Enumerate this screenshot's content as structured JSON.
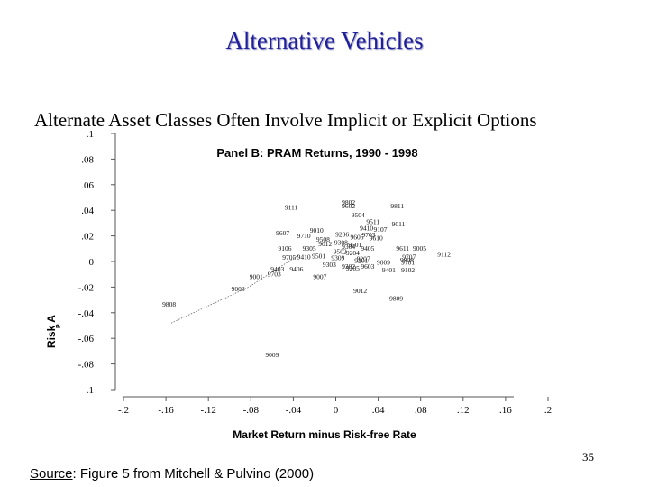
{
  "slide": {
    "title": "Alternative Vehicles",
    "subtitle": "Alternate Asset Classes Often Involve Implicit or Explicit Options",
    "slide_number": "35",
    "source_label": "Source",
    "source_text": ": Figure 5 from Mitchell & Pulvino (2000)"
  },
  "chart_data": {
    "type": "scatter",
    "title": "Panel B: PRAM Returns, 1990 - 1998",
    "xlabel": "Market Return minus Risk-free Rate",
    "ylabel": "Risk A",
    "ylabel_subscript": "P",
    "xlim": [
      -0.2,
      0.2
    ],
    "ylim": [
      -0.1,
      0.1
    ],
    "x_ticks": [
      {
        "value": -0.2,
        "label": "-.2"
      },
      {
        "value": -0.16,
        "label": "-.16"
      },
      {
        "value": -0.12,
        "label": "-.12"
      },
      {
        "value": -0.08,
        "label": "-.08"
      },
      {
        "value": -0.04,
        "label": "-.04"
      },
      {
        "value": 0,
        "label": "0"
      },
      {
        "value": 0.04,
        "label": ".04"
      },
      {
        "value": 0.08,
        "label": ".08"
      },
      {
        "value": 0.12,
        "label": ".12"
      },
      {
        "value": 0.16,
        "label": ".16"
      },
      {
        "value": 0.2,
        "label": ".2"
      }
    ],
    "y_ticks": [
      {
        "value": 0.1,
        "label": ".1"
      },
      {
        "value": 0.08,
        "label": ".08"
      },
      {
        "value": 0.06,
        "label": ".06"
      },
      {
        "value": 0.04,
        "label": ".04"
      },
      {
        "value": 0.02,
        "label": ".02"
      },
      {
        "value": 0,
        "label": "0"
      },
      {
        "value": -0.02,
        "label": "-.02"
      },
      {
        "value": -0.04,
        "label": "-.04"
      },
      {
        "value": -0.06,
        "label": "-.06"
      },
      {
        "value": -0.08,
        "label": "-.08"
      },
      {
        "value": -0.1,
        "label": "-.1"
      }
    ],
    "fit_line": [
      {
        "x": -0.155,
        "y": -0.048
      },
      {
        "x": -0.082,
        "y": -0.02
      },
      {
        "x": -0.035,
        "y": 0.005
      }
    ],
    "points": [
      {
        "label": "9808",
        "x": -0.157,
        "y": -0.033
      },
      {
        "label": "9008",
        "x": -0.092,
        "y": -0.021
      },
      {
        "label": "9001",
        "x": -0.075,
        "y": -0.0115
      },
      {
        "label": "9703",
        "x": -0.058,
        "y": -0.0095
      },
      {
        "label": "9403",
        "x": -0.055,
        "y": -0.0055
      },
      {
        "label": "9406",
        "x": -0.037,
        "y": -0.0055
      },
      {
        "label": "9007",
        "x": -0.015,
        "y": -0.0115
      },
      {
        "label": "9012",
        "x": 0.023,
        "y": -0.0225
      },
      {
        "label": "9809",
        "x": 0.057,
        "y": -0.0285
      },
      {
        "label": "9009",
        "x": -0.06,
        "y": -0.0725
      },
      {
        "label": "9802",
        "x": 0.012,
        "y": 0.0465
      },
      {
        "label": "9602",
        "x": 0.012,
        "y": 0.0435
      },
      {
        "label": "9111",
        "x": -0.042,
        "y": 0.0425
      },
      {
        "label": "9811",
        "x": 0.058,
        "y": 0.0435
      },
      {
        "label": "9504",
        "x": 0.021,
        "y": 0.0365
      },
      {
        "label": "9511",
        "x": 0.035,
        "y": 0.0315
      },
      {
        "label": "9011",
        "x": 0.059,
        "y": 0.0295
      },
      {
        "label": "9410",
        "x": 0.029,
        "y": 0.0265
      },
      {
        "label": "9107",
        "x": 0.042,
        "y": 0.0255
      },
      {
        "label": "9010",
        "x": -0.018,
        "y": 0.0245
      },
      {
        "label": "9607",
        "x": -0.05,
        "y": 0.0225
      },
      {
        "label": "9710",
        "x": -0.03,
        "y": 0.0205
      },
      {
        "label": "9106",
        "x": -0.048,
        "y": 0.0105
      },
      {
        "label": "9305",
        "x": -0.025,
        "y": 0.0105
      },
      {
        "label": "9012",
        "x": -0.01,
        "y": 0.014
      },
      {
        "label": "9308",
        "x": 0.005,
        "y": 0.015
      },
      {
        "label": "9705",
        "x": -0.044,
        "y": 0.0035
      },
      {
        "label": "9410",
        "x": -0.03,
        "y": 0.004
      },
      {
        "label": "9501",
        "x": -0.016,
        "y": 0.0045
      },
      {
        "label": "9309",
        "x": 0.002,
        "y": 0.003
      },
      {
        "label": "9204",
        "x": 0.016,
        "y": 0.007
      },
      {
        "label": "9405",
        "x": 0.03,
        "y": 0.0105
      },
      {
        "label": "9611",
        "x": 0.063,
        "y": 0.0105
      },
      {
        "label": "9005",
        "x": 0.079,
        "y": 0.0105
      },
      {
        "label": "9112",
        "x": 0.102,
        "y": 0.006
      },
      {
        "label": "9707",
        "x": 0.069,
        "y": 0.004
      },
      {
        "label": "9808",
        "x": 0.067,
        "y": 0.0015
      },
      {
        "label": "9701",
        "x": 0.068,
        "y": -0.0005
      },
      {
        "label": "9102",
        "x": 0.068,
        "y": -0.0065
      },
      {
        "label": "9401",
        "x": 0.05,
        "y": -0.0065
      },
      {
        "label": "9009",
        "x": 0.045,
        "y": -0.0005
      },
      {
        "label": "9201",
        "x": 0.024,
        "y": 0.001
      },
      {
        "label": "9302",
        "x": 0.012,
        "y": -0.0035
      },
      {
        "label": "9603",
        "x": 0.03,
        "y": -0.0035
      },
      {
        "label": "9205",
        "x": 0.016,
        "y": -0.005
      },
      {
        "label": "9303",
        "x": -0.006,
        "y": -0.002
      },
      {
        "label": "9610",
        "x": 0.038,
        "y": 0.0185
      },
      {
        "label": "9605",
        "x": 0.02,
        "y": 0.0195
      },
      {
        "label": "9206",
        "x": 0.006,
        "y": 0.0215
      },
      {
        "label": "9703",
        "x": 0.031,
        "y": 0.021
      },
      {
        "label": "9508",
        "x": -0.012,
        "y": 0.0175
      },
      {
        "label": "9304",
        "x": 0.012,
        "y": 0.012
      },
      {
        "label": "9601",
        "x": 0.018,
        "y": 0.0135
      },
      {
        "label": "9502",
        "x": 0.004,
        "y": 0.008
      },
      {
        "label": "9207",
        "x": 0.026,
        "y": 0.0025
      }
    ]
  }
}
